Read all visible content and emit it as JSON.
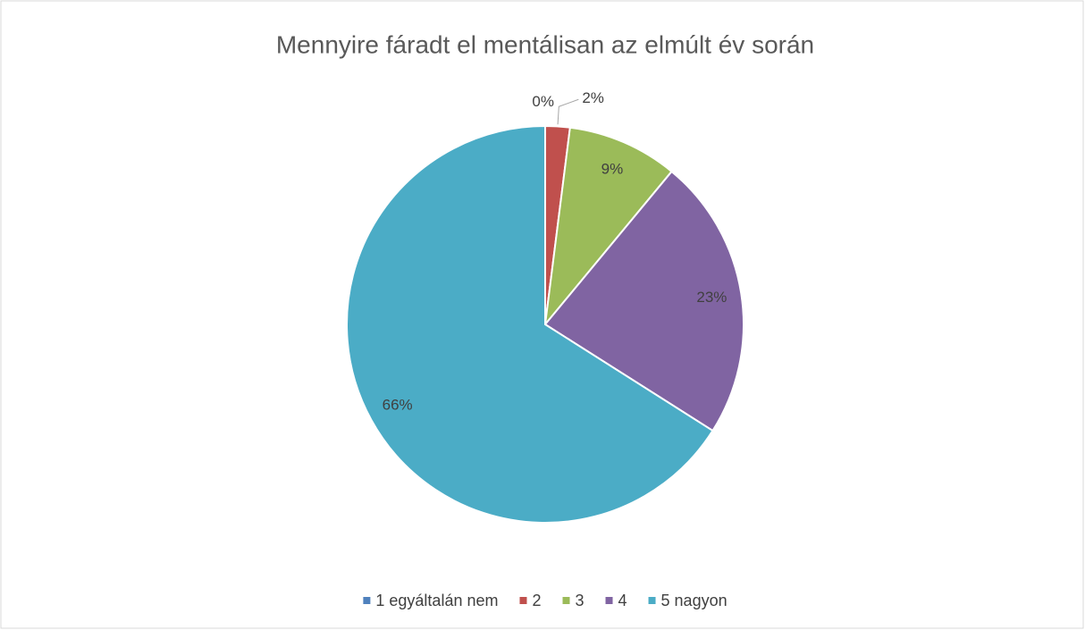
{
  "chart_data": {
    "type": "pie",
    "title": "Mennyire fáradt el  mentálisan az elmúlt év során",
    "categories": [
      "1 egyáltalán nem",
      "2",
      "3",
      "4",
      "5 nagyon"
    ],
    "values": [
      0,
      2,
      9,
      23,
      66
    ],
    "value_labels": [
      "0%",
      "2%",
      "9%",
      "23%",
      "66%"
    ],
    "colors": [
      "#4f81bd",
      "#c0504d",
      "#9bbb59",
      "#8064a2",
      "#4bacc6"
    ],
    "legend": "bottom"
  }
}
